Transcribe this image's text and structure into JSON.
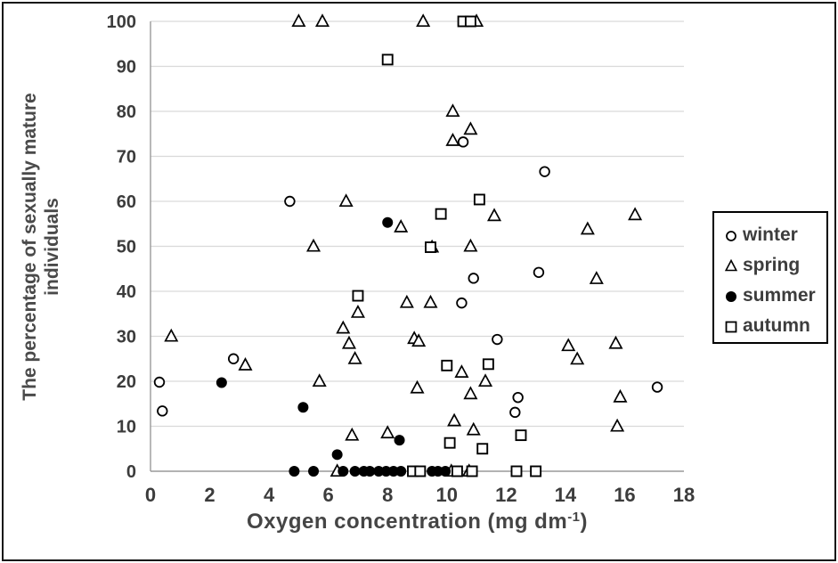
{
  "figure": {
    "legend": {
      "items": [
        {
          "label": "winter",
          "marker": "circle-open"
        },
        {
          "label": "spring",
          "marker": "triangle-open"
        },
        {
          "label": "summer",
          "marker": "circle-filled"
        },
        {
          "label": "autumn",
          "marker": "square-open"
        }
      ]
    },
    "colors": {
      "marker": "#000000",
      "gridline": "#d9d9d9",
      "axis": "#9a9a9a",
      "text": "#3c3c3c"
    }
  },
  "chart_data": {
    "type": "scatter",
    "title": "",
    "xlabel_parts": {
      "prefix": "Oxygen concentration (mg dm",
      "sup": "-1",
      "suffix": ")"
    },
    "ylabel_lines": [
      "The percentage of sexually mature",
      "individuals"
    ],
    "xlim": [
      0,
      18
    ],
    "ylim": [
      0,
      100
    ],
    "xticks": [
      0,
      2,
      4,
      6,
      8,
      10,
      12,
      14,
      16,
      18
    ],
    "yticks": [
      0,
      10,
      20,
      30,
      40,
      50,
      60,
      70,
      80,
      90,
      100
    ],
    "grid": "horizontal",
    "legend_position": "right-outside",
    "series": [
      {
        "name": "winter",
        "marker": "circle-open",
        "points": [
          [
            0.3,
            19.8
          ],
          [
            0.4,
            13.4
          ],
          [
            2.8,
            25
          ],
          [
            4.7,
            60
          ],
          [
            10.5,
            37.4
          ],
          [
            10.55,
            73.2
          ],
          [
            10.9,
            42.9
          ],
          [
            11.7,
            29.3
          ],
          [
            12.3,
            13.1
          ],
          [
            12.4,
            16.4
          ],
          [
            13.1,
            44.2
          ],
          [
            13.3,
            66.6
          ],
          [
            17.1,
            18.7
          ]
        ]
      },
      {
        "name": "spring",
        "marker": "triangle-open",
        "points": [
          [
            0.7,
            30
          ],
          [
            3.2,
            23.6
          ],
          [
            5.0,
            100
          ],
          [
            5.5,
            50
          ],
          [
            5.7,
            20
          ],
          [
            5.8,
            100
          ],
          [
            6.3,
            0
          ],
          [
            6.5,
            31.8
          ],
          [
            6.6,
            60
          ],
          [
            6.7,
            28.4
          ],
          [
            6.8,
            8
          ],
          [
            6.9,
            25
          ],
          [
            7.0,
            35.3
          ],
          [
            8.0,
            8.5
          ],
          [
            8.45,
            54.3
          ],
          [
            8.65,
            37.5
          ],
          [
            8.9,
            29.5
          ],
          [
            9.0,
            18.5
          ],
          [
            9.05,
            28.9
          ],
          [
            9.2,
            100
          ],
          [
            9.45,
            37.5
          ],
          [
            9.5,
            49.8
          ],
          [
            10.15,
            0
          ],
          [
            10.2,
            73.5
          ],
          [
            10.2,
            80
          ],
          [
            10.25,
            11.2
          ],
          [
            10.5,
            22
          ],
          [
            10.75,
            0
          ],
          [
            10.8,
            17.2
          ],
          [
            10.8,
            50
          ],
          [
            10.8,
            76
          ],
          [
            10.9,
            9.2
          ],
          [
            11.0,
            100
          ],
          [
            11.3,
            20
          ],
          [
            11.6,
            56.8
          ],
          [
            14.1,
            27.9
          ],
          [
            14.4,
            24.9
          ],
          [
            14.75,
            53.8
          ],
          [
            15.05,
            42.8
          ],
          [
            15.7,
            28.4
          ],
          [
            15.75,
            10
          ],
          [
            15.85,
            16.5
          ],
          [
            16.35,
            57
          ]
        ]
      },
      {
        "name": "summer",
        "marker": "circle-filled",
        "points": [
          [
            2.4,
            19.7
          ],
          [
            5.15,
            14.2
          ],
          [
            6.3,
            3.7
          ],
          [
            8.0,
            55.3
          ],
          [
            8.4,
            6.9
          ],
          [
            4.85,
            0
          ],
          [
            5.5,
            0
          ],
          [
            6.5,
            0
          ],
          [
            6.9,
            0
          ],
          [
            7.2,
            0
          ],
          [
            7.4,
            0
          ],
          [
            7.7,
            0
          ],
          [
            7.95,
            0
          ],
          [
            8.2,
            0
          ],
          [
            8.45,
            0
          ],
          [
            9.5,
            0
          ],
          [
            9.7,
            0
          ],
          [
            9.95,
            0
          ]
        ]
      },
      {
        "name": "autumn",
        "marker": "square-open",
        "points": [
          [
            7.0,
            39
          ],
          [
            8.0,
            91.5
          ],
          [
            9.45,
            49.8
          ],
          [
            9.8,
            57.2
          ],
          [
            10.0,
            23.5
          ],
          [
            10.1,
            6.3
          ],
          [
            10.55,
            100
          ],
          [
            10.8,
            100
          ],
          [
            11.1,
            60.4
          ],
          [
            11.2,
            5
          ],
          [
            11.4,
            23.8
          ],
          [
            12.5,
            8
          ],
          [
            8.85,
            0
          ],
          [
            9.1,
            0
          ],
          [
            10.35,
            0
          ],
          [
            10.85,
            0
          ],
          [
            12.35,
            0
          ],
          [
            13.0,
            0
          ]
        ]
      }
    ]
  }
}
